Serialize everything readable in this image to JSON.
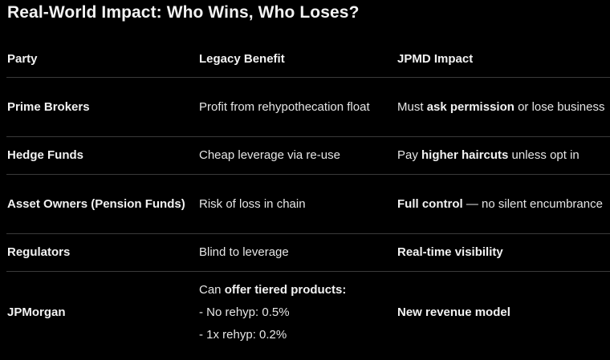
{
  "title": "Real-World Impact: Who Wins, Who Loses?",
  "headers": [
    "Party",
    "Legacy Benefit",
    "JPMD Impact"
  ],
  "rows": [
    {
      "party": "Prime Brokers",
      "legacy": "Profit from rehypothecation float",
      "impact": {
        "pre": "Must ",
        "bold": "ask permission",
        "post": " or lose business"
      }
    },
    {
      "party": "Hedge Funds",
      "legacy": "Cheap leverage via re-use",
      "impact": {
        "pre": "Pay ",
        "bold": "higher haircuts",
        "post": " unless opt in"
      }
    },
    {
      "party": "Asset Owners (Pension Funds)",
      "legacy": "Risk of loss in chain",
      "impact": {
        "pre": "",
        "bold": "Full control",
        "post": " — no silent encumbrance"
      }
    },
    {
      "party": "Regulators",
      "legacy": "Blind to leverage",
      "impact": {
        "pre": "",
        "bold": "Real-time visibility",
        "post": ""
      }
    },
    {
      "party": "JPMorgan",
      "legacy": {
        "pre": "Can ",
        "bold": "offer tiered products:",
        "lines": [
          " - No rehyp: 0.5%",
          " - 1x rehyp: 0.2%"
        ]
      },
      "impact": {
        "pre": "",
        "bold": "New revenue model",
        "post": ""
      }
    }
  ]
}
